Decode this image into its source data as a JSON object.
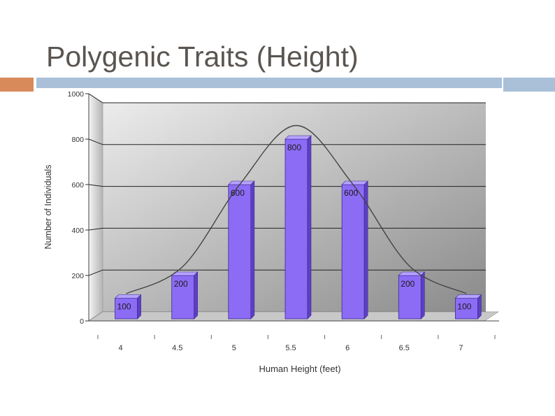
{
  "slide": {
    "title": "Polygenic Traits (Height)"
  },
  "colors": {
    "title": "#5a5550",
    "accent_orange": "#d98a5a",
    "accent_blue": "#a9c0d8",
    "bar_front": "#8c6cf5",
    "bar_side": "#5d3fc4",
    "bar_top": "#b6a2ff",
    "curve": "#444444"
  },
  "chart_data": {
    "type": "bar",
    "style": "3d-bar with normal curve overlay",
    "categories": [
      "4",
      "4.5",
      "5",
      "5.5",
      "6",
      "6.5",
      "7"
    ],
    "values": [
      100,
      200,
      600,
      800,
      600,
      200,
      100
    ],
    "data_labels": [
      "100",
      "200",
      "600",
      "800",
      "600",
      "200",
      "100"
    ],
    "title": "",
    "xlabel": "Human Height (feet)",
    "ylabel": "Number of Individuals",
    "ylim": [
      0,
      1000
    ],
    "yticks": [
      "0",
      "200",
      "400",
      "600",
      "800",
      "1000"
    ],
    "grid": true,
    "legend": "none",
    "overlay_curve": {
      "type": "normal-curve",
      "x": [
        4,
        4.5,
        5,
        5.5,
        6,
        6.5,
        7
      ],
      "y": [
        120,
        240,
        600,
        860,
        600,
        240,
        120
      ]
    }
  }
}
